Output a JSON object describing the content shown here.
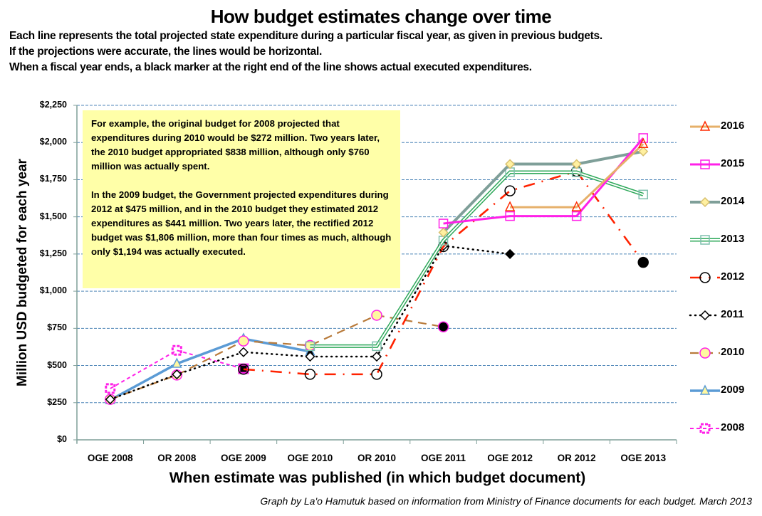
{
  "title": "How budget estimates change over time",
  "intro": [
    "Each line represents the total projected state expenditure during a particular fiscal year, as given in previous budgets.",
    "If the projections were accurate, the lines would be horizontal.",
    "When a fiscal year ends, a black marker at the right end of the line shows actual executed expenditures."
  ],
  "note": {
    "paragraph1": "For example, the original budget for 2008 projected that expenditures during 2010 would be $272 million. Two years later, the 2010 budget appropriated $838 million, although only $760 million was actually spent.",
    "paragraph2": "In the 2009 budget, the Government projected expenditures during 2012 at $475 million, and in the 2010 budget they estimated 2012 expenditures as $441 million. Two years later, the rectified 2012 budget was $1,806 million, more than four times as much, although only $1,194 was actually executed."
  },
  "credit": "Graph by La'o Hamutuk based on information from Ministry of Finance documents for each budget.  March 2013",
  "chart_data": {
    "type": "line",
    "title": "How budget estimates change over time",
    "xlabel": "When estimate was published (in which budget document)",
    "ylabel": "Million USD budgeted for each year",
    "categories": [
      "OGE 2008",
      "OR 2008",
      "OGE 2009",
      "OGE 2010",
      "OR 2010",
      "OGE 2011",
      "OGE 2012",
      "OR 2012",
      "OGE 2013"
    ],
    "ylim": [
      0,
      2250
    ],
    "yticks": [
      0,
      250,
      500,
      750,
      1000,
      1250,
      1500,
      1750,
      2000,
      2250
    ],
    "ytick_labels": [
      "$0",
      "$250",
      "$500",
      "$750",
      "$1,000",
      "$1,250",
      "$1,500",
      "$1,750",
      "$2,000",
      "$2,250"
    ],
    "grid": "horizontal dashed",
    "legend_position": "right",
    "series": [
      {
        "name": "2016",
        "color": "#e6b06a",
        "marker": "triangle",
        "marker_color": "#ff2a00",
        "style": "solid",
        "values": [
          null,
          null,
          null,
          null,
          null,
          null,
          1565,
          1565,
          1990
        ],
        "actual": null
      },
      {
        "name": "2015",
        "color": "#ff20e8",
        "marker": "square",
        "marker_color": "#ff20e8",
        "style": "solid",
        "values": [
          null,
          null,
          null,
          null,
          null,
          1455,
          1505,
          1505,
          2030
        ],
        "actual": null
      },
      {
        "name": "2014",
        "color": "#7f9f99",
        "marker": "diamond",
        "marker_color": "#fff0a0",
        "style": "solid",
        "values": [
          null,
          null,
          null,
          null,
          null,
          1395,
          1855,
          1855,
          1940
        ],
        "actual": null
      },
      {
        "name": "2013",
        "color": "#2ea85a",
        "marker": "square",
        "marker_color": "#7fbfae",
        "style": "double",
        "values": [
          null,
          null,
          null,
          630,
          630,
          1340,
          1800,
          1800,
          1650
        ],
        "actual": null
      },
      {
        "name": "2012",
        "color": "#ff2200",
        "marker": "circle",
        "marker_color": "#000000",
        "style": "dash-dot",
        "values": [
          null,
          null,
          475,
          441,
          441,
          1300,
          1675,
          1806,
          null
        ],
        "actual": {
          "category": "OGE 2013",
          "value": 1194
        }
      },
      {
        "name": "2011",
        "color": "#000000",
        "marker": "diamond",
        "marker_color": "#000000",
        "style": "dotted",
        "values": [
          272,
          440,
          590,
          560,
          560,
          1305,
          null,
          null,
          null
        ],
        "actual": {
          "category": "OGE 2012",
          "value": 1250
        }
      },
      {
        "name": "2010",
        "color": "#b87a3a",
        "marker": "circle",
        "marker_color": "#fff8a0",
        "style": "dashed",
        "values": [
          272,
          436,
          665,
          635,
          838,
          null,
          null,
          null,
          null
        ],
        "actual": {
          "category": "OGE 2011",
          "value": 760
        }
      },
      {
        "name": "2009",
        "color": "#5b9bd5",
        "marker": "triangle",
        "marker_color": "#5b9bd5",
        "style": "solid-thick",
        "values": [
          268,
          512,
          680,
          null,
          null,
          null,
          null,
          null,
          null
        ],
        "actual": {
          "category": "OGE 2010",
          "value": 594
        }
      },
      {
        "name": "2008",
        "color": "#ff20e8",
        "marker": "square",
        "marker_color": "#ff20e8",
        "style": "dashed",
        "values": [
          345,
          602,
          null,
          null,
          null,
          null,
          null,
          null,
          null
        ],
        "actual": {
          "category": "OGE 2009",
          "value": 478
        }
      }
    ]
  }
}
